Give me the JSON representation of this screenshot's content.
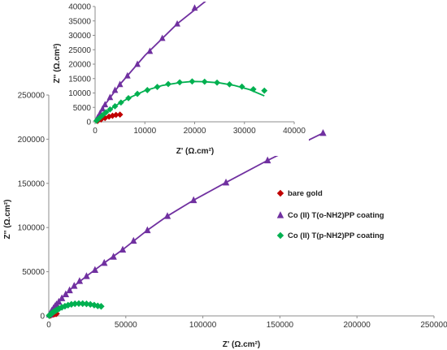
{
  "chart_data": [
    {
      "id": "main",
      "type": "scatter",
      "title": "",
      "xlabel": "Z' (Ω.cm²)",
      "ylabel": "Z'' (Ω.cm²)",
      "xlim": [
        0,
        250000
      ],
      "ylim": [
        0,
        250000
      ],
      "xticks": [
        0,
        50000,
        100000,
        150000,
        200000,
        250000
      ],
      "yticks": [
        0,
        50000,
        100000,
        150000,
        200000,
        250000
      ],
      "legend_position": "right",
      "series": [
        {
          "name": "bare gold",
          "color": "#c00000",
          "marker": "diamond",
          "points": [
            [
              500,
              300
            ],
            [
              1200,
              800
            ],
            [
              2000,
              1300
            ],
            [
              2800,
              1800
            ],
            [
              3500,
              2100
            ],
            [
              4200,
              2400
            ],
            [
              5000,
              2500
            ]
          ],
          "fit": [
            [
              0,
              0
            ],
            [
              1200,
              800
            ],
            [
              2500,
              1600
            ],
            [
              3800,
              2200
            ],
            [
              5000,
              2500
            ]
          ]
        },
        {
          "name": "Co (II) T(o-NH2)PP coating",
          "color": "#7030a0",
          "marker": "triangle",
          "points": [
            [
              500,
              1500
            ],
            [
              1000,
              3000
            ],
            [
              1500,
              4500
            ],
            [
              2000,
              6000
            ],
            [
              3000,
              8500
            ],
            [
              4000,
              11000
            ],
            [
              5000,
              13000
            ],
            [
              6500,
              16000
            ],
            [
              8500,
              20000
            ],
            [
              11000,
              24500
            ],
            [
              13500,
              29000
            ],
            [
              16500,
              34000
            ],
            [
              20000,
              39500
            ],
            [
              24500,
              45000
            ],
            [
              30000,
              52000
            ],
            [
              36000,
              60000
            ],
            [
              42000,
              67000
            ],
            [
              48000,
              75000
            ],
            [
              55000,
              85000
            ],
            [
              64000,
              97000
            ],
            [
              77000,
              113000
            ],
            [
              94000,
              131000
            ],
            [
              115000,
              151000
            ],
            [
              142000,
              176000
            ],
            [
              178000,
              207000
            ]
          ],
          "fit": [
            [
              0,
              0
            ],
            [
              2000,
              6000
            ],
            [
              5000,
              13000
            ],
            [
              10000,
              23000
            ],
            [
              16500,
              34000
            ],
            [
              24500,
              45000
            ],
            [
              36000,
              60000
            ],
            [
              48000,
              75000
            ],
            [
              64000,
              97000
            ],
            [
              77000,
              113000
            ],
            [
              94000,
              131000
            ],
            [
              115000,
              151000
            ],
            [
              142000,
              176000
            ],
            [
              178000,
              207000
            ]
          ]
        },
        {
          "name": "Co (II) T(p-NH2)PP coating",
          "color": "#00b050",
          "marker": "diamond",
          "points": [
            [
              300,
              400
            ],
            [
              600,
              900
            ],
            [
              1000,
              1500
            ],
            [
              1500,
              2300
            ],
            [
              2200,
              3300
            ],
            [
              3000,
              4300
            ],
            [
              4000,
              5400
            ],
            [
              5200,
              6700
            ],
            [
              6700,
              8200
            ],
            [
              8500,
              9700
            ],
            [
              10500,
              11000
            ],
            [
              12500,
              12100
            ],
            [
              14700,
              13100
            ],
            [
              17000,
              13700
            ],
            [
              19500,
              14000
            ],
            [
              22000,
              13900
            ],
            [
              24500,
              13600
            ],
            [
              27000,
              13000
            ],
            [
              29500,
              12200
            ],
            [
              31800,
              11300
            ],
            [
              34000,
              10800
            ]
          ],
          "fit": [
            [
              0,
              0
            ],
            [
              2000,
              3000
            ],
            [
              4000,
              5500
            ],
            [
              6700,
              8200
            ],
            [
              10000,
              10800
            ],
            [
              13500,
              12600
            ],
            [
              17000,
              13600
            ],
            [
              19500,
              14000
            ],
            [
              22000,
              13900
            ],
            [
              25000,
              13500
            ],
            [
              28000,
              12600
            ],
            [
              31000,
              11200
            ],
            [
              34000,
              9000
            ]
          ]
        }
      ]
    },
    {
      "id": "inset",
      "type": "scatter",
      "title": "",
      "xlabel": "Z' (Ω.cm²)",
      "ylabel": "Z'' (Ω.cm²)",
      "xlim": [
        0,
        40000
      ],
      "ylim": [
        0,
        40000
      ],
      "xticks": [
        0,
        10000,
        20000,
        30000,
        40000
      ],
      "yticks": [
        0,
        5000,
        10000,
        15000,
        20000,
        25000,
        30000,
        35000,
        40000
      ],
      "series_ref": "main"
    }
  ]
}
